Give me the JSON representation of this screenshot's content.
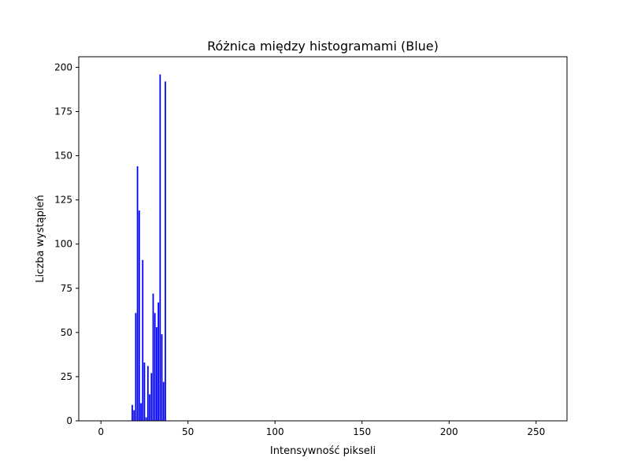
{
  "chart_data": {
    "type": "bar",
    "title": "Różnica między histogramami (Blue)",
    "xlabel": "Intensywność pikseli",
    "ylabel": "Liczba wystąpień",
    "xlim": [
      -12.75,
      267.75
    ],
    "ylim": [
      0,
      206
    ],
    "x_ticks": [
      0,
      50,
      100,
      150,
      200,
      250
    ],
    "y_ticks": [
      0,
      25,
      50,
      75,
      100,
      125,
      150,
      175,
      200
    ],
    "bar_color": "#0000ff",
    "grid": false,
    "legend": "none",
    "x": [
      18,
      19,
      20,
      21,
      22,
      23,
      24,
      25,
      26,
      27,
      28,
      29,
      30,
      31,
      32,
      33,
      34,
      35,
      36,
      37
    ],
    "values": [
      9,
      6,
      61,
      144,
      119,
      10,
      91,
      33,
      2,
      31,
      15,
      27,
      72,
      61,
      53,
      67,
      196,
      49,
      22,
      192
    ]
  }
}
